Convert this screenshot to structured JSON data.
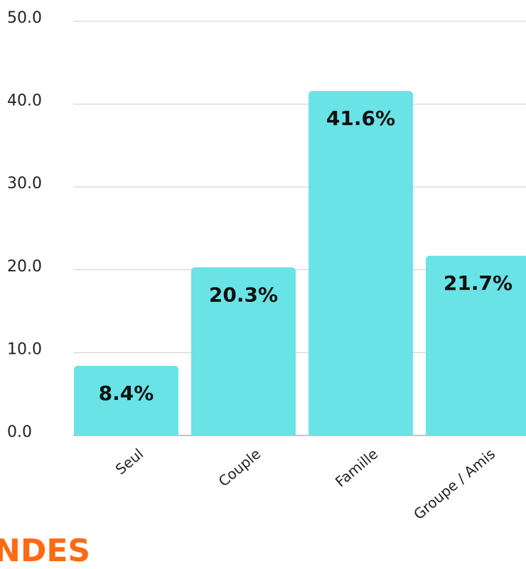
{
  "chart_data": {
    "type": "bar",
    "categories": [
      "Seul",
      "Couple",
      "Famille",
      "Groupe / Amis"
    ],
    "values": [
      8.4,
      20.3,
      41.6,
      21.7
    ],
    "value_labels": [
      "8.4%",
      "20.3%",
      "41.6%",
      "21.7%"
    ],
    "color": "#6ae3e6",
    "ylim": [
      0,
      50
    ],
    "yticks": [
      {
        "value": 0,
        "label": "0.0"
      },
      {
        "value": 10,
        "label": "10.0"
      },
      {
        "value": 20,
        "label": "20.0"
      },
      {
        "value": 30,
        "label": "30.0"
      },
      {
        "value": 40,
        "label": "40.0"
      },
      {
        "value": 50,
        "label": "50.0"
      }
    ],
    "grid": true
  },
  "heading": "NDES"
}
